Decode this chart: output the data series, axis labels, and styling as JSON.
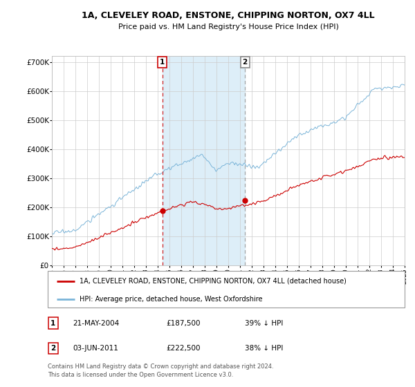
{
  "title_line1": "1A, CLEVELEY ROAD, ENSTONE, CHIPPING NORTON, OX7 4LL",
  "title_line2": "Price paid vs. HM Land Registry's House Price Index (HPI)",
  "ylabel_ticks": [
    "£0",
    "£100K",
    "£200K",
    "£300K",
    "£400K",
    "£500K",
    "£600K",
    "£700K"
  ],
  "ylim": [
    0,
    720000
  ],
  "yticks": [
    0,
    100000,
    200000,
    300000,
    400000,
    500000,
    600000,
    700000
  ],
  "sale1_year": 2004.39,
  "sale1_price": 187500,
  "sale2_year": 2011.42,
  "sale2_price": 222500,
  "hpi_color": "#7ab4d8",
  "price_color": "#cc0000",
  "shade_color": "#ddeef8",
  "legend_line1": "1A, CLEVELEY ROAD, ENSTONE, CHIPPING NORTON, OX7 4LL (detached house)",
  "legend_line2": "HPI: Average price, detached house, West Oxfordshire",
  "table_row1": [
    "1",
    "21-MAY-2004",
    "£187,500",
    "39% ↓ HPI"
  ],
  "table_row2": [
    "2",
    "03-JUN-2011",
    "£222,500",
    "38% ↓ HPI"
  ],
  "footnote1": "Contains HM Land Registry data © Crown copyright and database right 2024.",
  "footnote2": "This data is licensed under the Open Government Licence v3.0.",
  "grid_color": "#cccccc",
  "xmin": 1995,
  "xmax": 2025
}
